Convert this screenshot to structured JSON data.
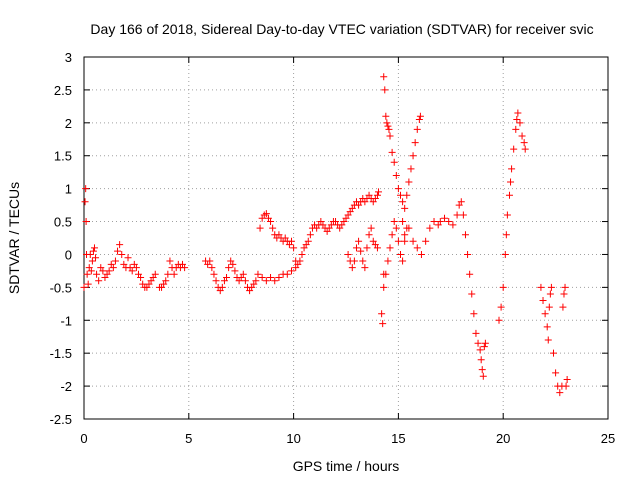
{
  "chart_data": {
    "type": "scatter",
    "title": "Day 166 of 2018, Sidereal Day-to-day VTEC variation (SDTVAR) for receiver svic",
    "xlabel": "GPS time / hours",
    "ylabel": "SDTVAR / TECUs",
    "xlim": [
      0,
      25
    ],
    "ylim": [
      -2.5,
      3
    ],
    "xticks": [
      0,
      5,
      10,
      15,
      20,
      25
    ],
    "yticks": [
      -2.5,
      -2,
      -1.5,
      -1,
      -0.5,
      0,
      0.5,
      1,
      1.5,
      2,
      2.5,
      3
    ],
    "xtick_labels": [
      "0",
      "5",
      "10",
      "15",
      "20",
      "25"
    ],
    "ytick_labels": [
      "-2.5",
      "-2",
      "-1.5",
      "-1",
      "-0.5",
      "0",
      "0.5",
      "1",
      "1.5",
      "2",
      "2.5",
      "3"
    ],
    "grid": true,
    "marker": "+",
    "color": "#ff0000",
    "series": [
      {
        "name": "SDTVAR",
        "points": [
          [
            0.0,
            -0.5
          ],
          [
            0.05,
            0.8
          ],
          [
            0.08,
            1.0
          ],
          [
            0.1,
            0.5
          ],
          [
            0.12,
            0.0
          ],
          [
            0.15,
            -0.3
          ],
          [
            0.2,
            -0.45
          ],
          [
            0.25,
            -0.2
          ],
          [
            0.3,
            0.0
          ],
          [
            0.35,
            -0.25
          ],
          [
            0.4,
            -0.1
          ],
          [
            0.45,
            0.05
          ],
          [
            0.5,
            0.1
          ],
          [
            0.55,
            -0.05
          ],
          [
            0.6,
            -0.3
          ],
          [
            0.7,
            -0.4
          ],
          [
            0.8,
            -0.2
          ],
          [
            0.9,
            -0.25
          ],
          [
            1.0,
            -0.35
          ],
          [
            1.1,
            -0.3
          ],
          [
            1.2,
            -0.25
          ],
          [
            1.3,
            -0.15
          ],
          [
            1.4,
            -0.2
          ],
          [
            1.5,
            -0.1
          ],
          [
            1.6,
            0.05
          ],
          [
            1.7,
            0.15
          ],
          [
            1.8,
            0.0
          ],
          [
            1.9,
            -0.15
          ],
          [
            2.0,
            -0.2
          ],
          [
            2.1,
            -0.05
          ],
          [
            2.2,
            -0.2
          ],
          [
            2.3,
            -0.25
          ],
          [
            2.4,
            -0.15
          ],
          [
            2.5,
            -0.2
          ],
          [
            2.6,
            -0.3
          ],
          [
            2.7,
            -0.35
          ],
          [
            2.8,
            -0.45
          ],
          [
            2.9,
            -0.5
          ],
          [
            3.0,
            -0.5
          ],
          [
            3.1,
            -0.45
          ],
          [
            3.2,
            -0.4
          ],
          [
            3.3,
            -0.35
          ],
          [
            3.4,
            -0.3
          ],
          [
            3.6,
            -0.5
          ],
          [
            3.7,
            -0.5
          ],
          [
            3.8,
            -0.45
          ],
          [
            3.9,
            -0.4
          ],
          [
            4.0,
            -0.3
          ],
          [
            4.1,
            -0.1
          ],
          [
            4.2,
            -0.2
          ],
          [
            4.3,
            -0.3
          ],
          [
            4.4,
            -0.2
          ],
          [
            4.5,
            -0.15
          ],
          [
            4.6,
            -0.2
          ],
          [
            4.7,
            -0.15
          ],
          [
            4.8,
            -0.2
          ],
          [
            5.8,
            -0.1
          ],
          [
            5.9,
            -0.15
          ],
          [
            6.0,
            -0.1
          ],
          [
            6.1,
            -0.2
          ],
          [
            6.2,
            -0.3
          ],
          [
            6.3,
            -0.4
          ],
          [
            6.4,
            -0.5
          ],
          [
            6.5,
            -0.55
          ],
          [
            6.6,
            -0.5
          ],
          [
            6.7,
            -0.4
          ],
          [
            6.8,
            -0.35
          ],
          [
            6.9,
            -0.2
          ],
          [
            7.0,
            -0.1
          ],
          [
            7.1,
            -0.15
          ],
          [
            7.2,
            -0.25
          ],
          [
            7.3,
            -0.35
          ],
          [
            7.4,
            -0.4
          ],
          [
            7.5,
            -0.35
          ],
          [
            7.6,
            -0.3
          ],
          [
            7.7,
            -0.4
          ],
          [
            7.8,
            -0.5
          ],
          [
            7.9,
            -0.55
          ],
          [
            8.0,
            -0.5
          ],
          [
            8.1,
            -0.45
          ],
          [
            8.2,
            -0.4
          ],
          [
            8.3,
            -0.3
          ],
          [
            8.4,
            0.4
          ],
          [
            8.5,
            0.55
          ],
          [
            8.6,
            0.6
          ],
          [
            8.7,
            0.62
          ],
          [
            8.8,
            0.55
          ],
          [
            8.9,
            0.5
          ],
          [
            9.0,
            0.4
          ],
          [
            9.1,
            0.3
          ],
          [
            9.2,
            0.25
          ],
          [
            9.3,
            0.3
          ],
          [
            9.4,
            0.25
          ],
          [
            9.5,
            0.2
          ],
          [
            9.6,
            0.25
          ],
          [
            9.7,
            0.2
          ],
          [
            9.8,
            0.15
          ],
          [
            9.9,
            0.2
          ],
          [
            10.0,
            0.1
          ],
          [
            10.1,
            -0.1
          ],
          [
            10.2,
            -0.15
          ],
          [
            10.3,
            -0.1
          ],
          [
            10.4,
            0.0
          ],
          [
            10.5,
            0.1
          ],
          [
            10.6,
            0.15
          ],
          [
            10.7,
            0.2
          ],
          [
            8.5,
            -0.35
          ],
          [
            8.7,
            -0.4
          ],
          [
            8.9,
            -0.35
          ],
          [
            9.1,
            -0.4
          ],
          [
            9.3,
            -0.35
          ],
          [
            9.5,
            -0.3
          ],
          [
            9.7,
            -0.3
          ],
          [
            9.9,
            -0.25
          ],
          [
            10.1,
            -0.2
          ],
          [
            10.8,
            0.3
          ],
          [
            10.9,
            0.4
          ],
          [
            11.0,
            0.45
          ],
          [
            11.1,
            0.4
          ],
          [
            11.2,
            0.45
          ],
          [
            11.3,
            0.5
          ],
          [
            11.4,
            0.45
          ],
          [
            11.5,
            0.4
          ],
          [
            11.6,
            0.35
          ],
          [
            11.7,
            0.4
          ],
          [
            11.8,
            0.45
          ],
          [
            11.9,
            0.5
          ],
          [
            12.0,
            0.5
          ],
          [
            12.1,
            0.45
          ],
          [
            12.2,
            0.4
          ],
          [
            12.3,
            0.45
          ],
          [
            12.4,
            0.5
          ],
          [
            12.5,
            0.55
          ],
          [
            12.6,
            0.6
          ],
          [
            12.7,
            0.65
          ],
          [
            12.8,
            0.7
          ],
          [
            12.9,
            0.75
          ],
          [
            13.0,
            0.8
          ],
          [
            13.1,
            0.75
          ],
          [
            13.2,
            0.8
          ],
          [
            13.3,
            0.85
          ],
          [
            13.4,
            0.8
          ],
          [
            13.5,
            0.85
          ],
          [
            13.6,
            0.9
          ],
          [
            13.7,
            0.85
          ],
          [
            13.8,
            0.8
          ],
          [
            13.9,
            0.85
          ],
          [
            14.0,
            0.9
          ],
          [
            14.05,
            0.95
          ],
          [
            12.6,
            0.0
          ],
          [
            12.7,
            -0.1
          ],
          [
            12.8,
            -0.2
          ],
          [
            12.9,
            -0.1
          ],
          [
            13.0,
            0.1
          ],
          [
            13.1,
            0.2
          ],
          [
            13.2,
            0.05
          ],
          [
            13.3,
            -0.1
          ],
          [
            13.4,
            -0.2
          ],
          [
            13.5,
            0.1
          ],
          [
            13.6,
            0.3
          ],
          [
            13.7,
            0.4
          ],
          [
            13.8,
            0.2
          ],
          [
            13.9,
            0.15
          ],
          [
            14.0,
            0.1
          ],
          [
            14.2,
            -0.9
          ],
          [
            14.25,
            -1.05
          ],
          [
            14.3,
            -0.3
          ],
          [
            14.3,
            2.7
          ],
          [
            14.35,
            2.5
          ],
          [
            14.4,
            2.1
          ],
          [
            14.45,
            2.0
          ],
          [
            14.5,
            1.95
          ],
          [
            14.55,
            1.9
          ],
          [
            14.6,
            1.8
          ],
          [
            14.7,
            1.55
          ],
          [
            14.8,
            1.4
          ],
          [
            14.9,
            1.2
          ],
          [
            15.0,
            1.0
          ],
          [
            15.1,
            0.9
          ],
          [
            15.2,
            0.8
          ],
          [
            14.3,
            -0.5
          ],
          [
            14.4,
            -0.3
          ],
          [
            14.5,
            -0.1
          ],
          [
            14.6,
            0.1
          ],
          [
            14.7,
            0.3
          ],
          [
            14.8,
            0.5
          ],
          [
            14.9,
            0.4
          ],
          [
            15.0,
            0.2
          ],
          [
            15.1,
            0.0
          ],
          [
            15.2,
            -0.1
          ],
          [
            15.3,
            0.2
          ],
          [
            15.4,
            0.4
          ],
          [
            15.2,
            0.5
          ],
          [
            15.3,
            0.7
          ],
          [
            15.4,
            0.9
          ],
          [
            15.5,
            1.1
          ],
          [
            15.6,
            1.3
          ],
          [
            15.7,
            1.5
          ],
          [
            15.8,
            1.7
          ],
          [
            15.9,
            1.9
          ],
          [
            16.0,
            2.05
          ],
          [
            16.05,
            2.1
          ],
          [
            15.3,
            0.3
          ],
          [
            15.5,
            0.4
          ],
          [
            15.7,
            0.2
          ],
          [
            15.9,
            0.1
          ],
          [
            16.1,
            0.0
          ],
          [
            16.3,
            0.2
          ],
          [
            16.5,
            0.4
          ],
          [
            16.7,
            0.5
          ],
          [
            16.9,
            0.45
          ],
          [
            17.0,
            0.5
          ],
          [
            17.2,
            0.55
          ],
          [
            17.4,
            0.5
          ],
          [
            17.6,
            0.45
          ],
          [
            17.8,
            0.6
          ],
          [
            17.9,
            0.75
          ],
          [
            18.0,
            0.8
          ],
          [
            18.1,
            0.6
          ],
          [
            18.2,
            0.3
          ],
          [
            18.3,
            0.0
          ],
          [
            18.4,
            -0.3
          ],
          [
            18.5,
            -0.6
          ],
          [
            18.6,
            -0.9
          ],
          [
            18.7,
            -1.2
          ],
          [
            18.8,
            -1.35
          ],
          [
            18.9,
            -1.45
          ],
          [
            18.95,
            -1.6
          ],
          [
            19.0,
            -1.75
          ],
          [
            19.05,
            -1.85
          ],
          [
            19.1,
            -1.4
          ],
          [
            19.15,
            -1.35
          ],
          [
            19.8,
            -1.0
          ],
          [
            19.9,
            -0.8
          ],
          [
            20.0,
            -0.5
          ],
          [
            20.1,
            0.0
          ],
          [
            20.15,
            0.3
          ],
          [
            20.2,
            0.6
          ],
          [
            20.3,
            0.9
          ],
          [
            20.35,
            1.1
          ],
          [
            20.4,
            1.3
          ],
          [
            20.5,
            1.6
          ],
          [
            20.6,
            1.9
          ],
          [
            20.65,
            2.05
          ],
          [
            20.7,
            2.15
          ],
          [
            20.8,
            2.0
          ],
          [
            20.9,
            1.8
          ],
          [
            21.0,
            1.7
          ],
          [
            21.05,
            1.6
          ],
          [
            21.8,
            -0.5
          ],
          [
            21.9,
            -0.7
          ],
          [
            22.0,
            -0.9
          ],
          [
            22.1,
            -1.1
          ],
          [
            22.15,
            -1.3
          ],
          [
            22.2,
            -0.8
          ],
          [
            22.25,
            -0.6
          ],
          [
            22.3,
            -0.5
          ],
          [
            22.4,
            -1.5
          ],
          [
            22.5,
            -1.8
          ],
          [
            22.6,
            -2.0
          ],
          [
            22.7,
            -2.1
          ],
          [
            22.8,
            -2.0
          ],
          [
            22.85,
            -0.8
          ],
          [
            22.9,
            -0.6
          ],
          [
            22.95,
            -0.5
          ],
          [
            23.0,
            -2.0
          ],
          [
            23.05,
            -1.9
          ]
        ]
      }
    ]
  }
}
